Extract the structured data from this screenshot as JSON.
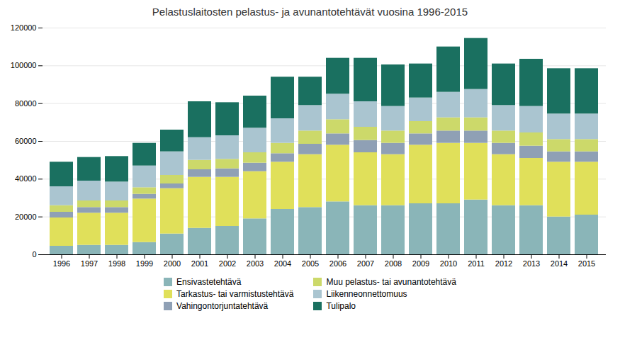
{
  "chart_data": {
    "type": "bar",
    "stacked": true,
    "title": "Pelastuslaitosten pelastus- ja avunantotehtävät vuosina 1996-2015",
    "categories": [
      "1996",
      "1997",
      "1998",
      "1999",
      "2000",
      "2001",
      "2002",
      "2003",
      "2004",
      "2005",
      "2006",
      "2007",
      "2008",
      "2009",
      "2010",
      "2011",
      "2012",
      "2013",
      "2014",
      "2015"
    ],
    "series": [
      {
        "name": "Ensivastetehtävä",
        "color": "#8ab5b8",
        "values": [
          4500,
          5000,
          5000,
          6500,
          11000,
          14000,
          15000,
          19000,
          24000,
          25000,
          28000,
          26000,
          26000,
          27000,
          27000,
          29000,
          26000,
          26000,
          20000,
          21000
        ]
      },
      {
        "name": "Tarkastus- tai varmistustehtävä",
        "color": "#e0e05a",
        "values": [
          15000,
          17000,
          17000,
          23000,
          24000,
          27000,
          26000,
          25000,
          25000,
          28000,
          30000,
          28000,
          27000,
          31000,
          32000,
          30000,
          27000,
          25000,
          29000,
          28000
        ]
      },
      {
        "name": "Vahingontorjuntatehtävä",
        "color": "#8fa0b5",
        "values": [
          3000,
          3000,
          3000,
          2500,
          2500,
          4000,
          4500,
          4500,
          4500,
          5500,
          6000,
          6500,
          6000,
          6000,
          6500,
          6500,
          6000,
          6500,
          5500,
          5500
        ]
      },
      {
        "name": "Muu pelastus- tai avunantotehtävä",
        "color": "#ccd96a",
        "values": [
          3500,
          3500,
          3500,
          3500,
          4500,
          5000,
          5000,
          5500,
          5500,
          7000,
          7500,
          7000,
          6500,
          6500,
          7000,
          7000,
          6500,
          7000,
          6500,
          6500
        ]
      },
      {
        "name": "Liikenneonnettomuus",
        "color": "#aac5d0",
        "values": [
          10000,
          10500,
          10000,
          11500,
          12500,
          12000,
          12500,
          13000,
          13000,
          13500,
          13500,
          13500,
          13000,
          12500,
          13500,
          15000,
          13500,
          14000,
          13500,
          13500
        ]
      },
      {
        "name": "Tulipalo",
        "color": "#1a7060",
        "values": [
          13000,
          12500,
          13500,
          12000,
          11500,
          19000,
          17500,
          17000,
          22000,
          15000,
          19000,
          23000,
          22000,
          18000,
          24000,
          27000,
          22000,
          25000,
          24000,
          24000
        ]
      }
    ],
    "ylim": [
      0,
      120000
    ],
    "yticks": [
      0,
      20000,
      40000,
      60000,
      80000,
      100000,
      120000
    ],
    "grid": true,
    "legend": "bottom"
  }
}
